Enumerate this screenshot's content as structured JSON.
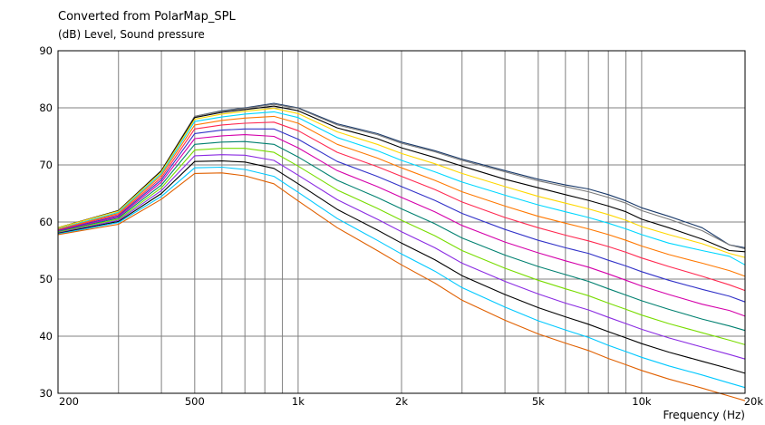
{
  "chart_data": {
    "type": "line",
    "title": "Converted from PolarMap_SPL",
    "ylabel": "(dB)  Level, Sound pressure",
    "xlabel": "Frequency  (Hz)",
    "xscale": "log",
    "xlim": [
      200,
      20000
    ],
    "ylim": [
      30,
      90
    ],
    "grid": true,
    "legend": "none",
    "y_ticks": [
      "90",
      "80",
      "70",
      "60",
      "50",
      "40",
      "30"
    ],
    "x_ticks": [
      {
        "value": 200,
        "label": "200"
      },
      {
        "value": 500,
        "label": "500"
      },
      {
        "value": 1000,
        "label": "1k"
      },
      {
        "value": 2000,
        "label": "2k"
      },
      {
        "value": 5000,
        "label": "5k"
      },
      {
        "value": 10000,
        "label": "10k"
      },
      {
        "value": 20000,
        "label": "20k"
      }
    ],
    "x": [
      200,
      300,
      400,
      500,
      600,
      700,
      850,
      1000,
      1300,
      1700,
      2000,
      2500,
      3000,
      4000,
      5000,
      6000,
      7000,
      8000,
      9000,
      10000,
      12000,
      15000,
      18000,
      20000
    ],
    "series": [
      {
        "color": "#1a3a6a",
        "values": [
          59,
          62,
          69,
          78.5,
          79.5,
          80,
          80.8,
          80,
          77.2,
          75.5,
          74,
          72.5,
          71,
          69,
          67.5,
          66.5,
          65.8,
          64.8,
          63.7,
          62.5,
          61,
          59,
          56,
          55.5
        ]
      },
      {
        "color": "#7a7a7a",
        "values": [
          59,
          62,
          69,
          78.5,
          79.4,
          79.9,
          80.6,
          79.9,
          77,
          75.3,
          73.8,
          72.3,
          70.8,
          68.8,
          67.2,
          66.2,
          65.3,
          64.3,
          63.3,
          62,
          60.5,
          58.5,
          56,
          55.3
        ]
      },
      {
        "color": "#000000",
        "values": [
          59,
          62,
          69,
          78.3,
          79.2,
          79.7,
          80.3,
          79.5,
          76.5,
          74.6,
          73,
          71.3,
          69.8,
          67.5,
          66,
          64.8,
          63.8,
          62.8,
          61.8,
          60.5,
          59,
          57,
          55,
          54.8
        ]
      },
      {
        "color": "#ffd700",
        "values": [
          59,
          61.9,
          68.8,
          78,
          78.9,
          79.4,
          79.9,
          79,
          75.8,
          73.6,
          72,
          70.2,
          68.5,
          66.2,
          64.5,
          63.3,
          62.3,
          61.3,
          60.3,
          59.2,
          57.8,
          56.2,
          54.5,
          53.8
        ]
      },
      {
        "color": "#00d7ff",
        "values": [
          58.8,
          61.7,
          68.5,
          77.6,
          78.4,
          78.9,
          79.3,
          78.3,
          74.8,
          72.5,
          70.8,
          68.8,
          67,
          64.7,
          63,
          61.8,
          60.8,
          59.8,
          58.8,
          57.8,
          56.3,
          55,
          54,
          52.5
        ]
      },
      {
        "color": "#ff7800",
        "values": [
          58.7,
          61.5,
          68.2,
          77,
          77.8,
          78.2,
          78.5,
          77.3,
          73.6,
          71.2,
          69.5,
          67.3,
          65.3,
          62.8,
          61,
          59.8,
          58.8,
          57.8,
          56.8,
          55.8,
          54.3,
          52.8,
          51.5,
          50.5
        ]
      },
      {
        "color": "#ff2850",
        "values": [
          58.6,
          61.3,
          67.8,
          76.3,
          77,
          77.3,
          77.5,
          76,
          72.2,
          69.7,
          68,
          65.7,
          63.5,
          60.8,
          59,
          57.7,
          56.7,
          55.7,
          54.7,
          53.7,
          52.2,
          50.5,
          49,
          48
        ]
      },
      {
        "color": "#3232c8",
        "values": [
          58.5,
          61.1,
          67.4,
          75.5,
          76.1,
          76.3,
          76.3,
          74.5,
          70.6,
          68,
          66.2,
          63.8,
          61.5,
          58.7,
          56.8,
          55.5,
          54.5,
          53.3,
          52.3,
          51.3,
          49.8,
          48.2,
          47,
          46
        ]
      },
      {
        "color": "#d400aa",
        "values": [
          58.4,
          60.9,
          67,
          74.6,
          75.1,
          75.3,
          75,
          73,
          69,
          66.2,
          64.3,
          61.8,
          59.4,
          56.5,
          54.6,
          53.2,
          52.1,
          50.9,
          49.8,
          48.8,
          47.3,
          45.6,
          44.5,
          43.5
        ]
      },
      {
        "color": "#008070",
        "values": [
          58.3,
          60.7,
          66.5,
          73.6,
          74,
          74.1,
          73.6,
          71.4,
          67.3,
          64.3,
          62.3,
          59.7,
          57.2,
          54.2,
          52.2,
          50.8,
          49.6,
          48.3,
          47.2,
          46.2,
          44.7,
          43,
          41.8,
          41
        ]
      },
      {
        "color": "#78dc00",
        "values": [
          58.2,
          60.5,
          66,
          72.6,
          72.9,
          72.9,
          72.2,
          69.8,
          65.6,
          62.4,
          60.3,
          57.6,
          55,
          51.9,
          49.8,
          48.3,
          47.1,
          45.8,
          44.7,
          43.7,
          42.2,
          40.6,
          39.3,
          38.5
        ]
      },
      {
        "color": "#8a2be2",
        "values": [
          58.1,
          60.3,
          65.5,
          71.6,
          71.8,
          71.7,
          70.8,
          68.2,
          63.9,
          60.5,
          58.3,
          55.5,
          52.8,
          49.6,
          47.4,
          45.8,
          44.6,
          43.3,
          42.2,
          41.2,
          39.7,
          38.1,
          36.8,
          36
        ]
      },
      {
        "color": "#000000",
        "values": [
          58,
          60.1,
          65,
          70.6,
          70.7,
          70.5,
          69.4,
          66.7,
          62.2,
          58.6,
          56.3,
          53.4,
          50.6,
          47.3,
          45,
          43.4,
          42.1,
          40.8,
          39.7,
          38.7,
          37.2,
          35.6,
          34.3,
          33.5
        ]
      },
      {
        "color": "#00c8ff",
        "values": [
          57.9,
          59.9,
          64.5,
          69.5,
          69.6,
          69.2,
          68,
          65.2,
          60.6,
          56.8,
          54.4,
          51.4,
          48.5,
          45.1,
          42.7,
          41.1,
          39.8,
          38.4,
          37.3,
          36.3,
          34.8,
          33.2,
          31.8,
          31
        ]
      },
      {
        "color": "#e06000",
        "values": [
          57.8,
          59.6,
          64,
          68.5,
          68.6,
          68.1,
          66.7,
          63.7,
          59,
          55,
          52.5,
          49.3,
          46.3,
          42.8,
          40.4,
          38.8,
          37.5,
          36.1,
          35,
          34,
          32.5,
          30.9,
          29.5,
          28.7
        ]
      }
    ]
  }
}
